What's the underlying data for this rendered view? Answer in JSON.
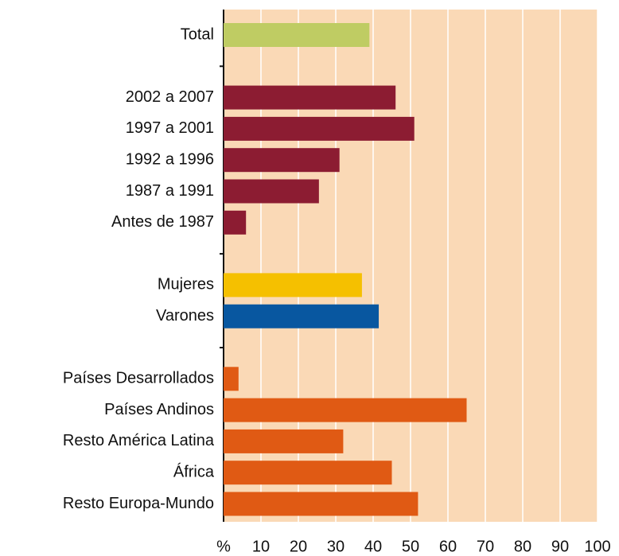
{
  "chart_data": {
    "type": "barh",
    "categories": [
      "Total",
      null,
      "2002 a 2007",
      "1997 a 2001",
      "1992 a 1996",
      "1987 a 1991",
      "Antes de 1987",
      null,
      "Mujeres",
      "Varones",
      null,
      "Países Desarrollados",
      "Países Andinos",
      "Resto América Latina",
      "África",
      "Resto Europa-Mundo"
    ],
    "values": [
      39,
      null,
      46,
      51,
      31,
      25.5,
      6,
      null,
      37,
      41.5,
      null,
      4,
      65,
      32,
      45,
      52
    ],
    "colors": [
      "#bfcc63",
      null,
      "#8c1c32",
      "#8c1c32",
      "#8c1c32",
      "#8c1c32",
      "#8c1c32",
      null,
      "#f5c000",
      "#0857a0",
      null,
      "#e05a14",
      "#e05a14",
      "#e05a14",
      "#e05a14",
      "#e05a14"
    ],
    "xlim": [
      0,
      100
    ],
    "xticks": [
      {
        "value": 0,
        "label": "%"
      },
      10,
      20,
      30,
      40,
      50,
      60,
      70,
      80,
      90,
      100
    ],
    "grid": true
  }
}
